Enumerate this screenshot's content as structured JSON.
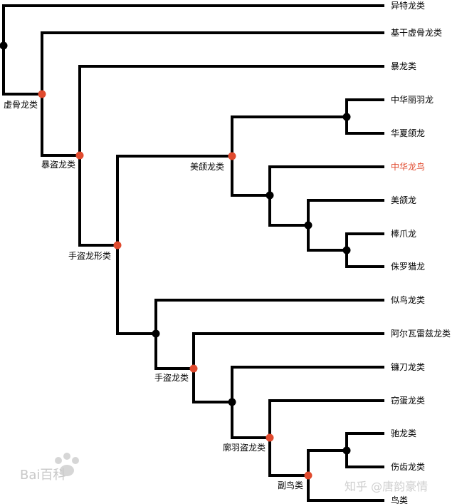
{
  "taxa": [
    {
      "label": "异特龙类",
      "highlight": false
    },
    {
      "label": "基干虚骨龙类",
      "highlight": false
    },
    {
      "label": "暴龙类",
      "highlight": false
    },
    {
      "label": "中华丽羽龙",
      "highlight": false
    },
    {
      "label": "华夏颌龙",
      "highlight": false
    },
    {
      "label": "中华龙鸟",
      "highlight": true
    },
    {
      "label": "美颌龙",
      "highlight": false
    },
    {
      "label": "棒爪龙",
      "highlight": false
    },
    {
      "label": "侏罗猎龙",
      "highlight": false
    },
    {
      "label": "似鸟龙类",
      "highlight": false
    },
    {
      "label": "阿尔瓦雷兹龙类",
      "highlight": false
    },
    {
      "label": "镰刀龙类",
      "highlight": false
    },
    {
      "label": "窃蛋龙类",
      "highlight": false
    },
    {
      "label": "驰龙类",
      "highlight": false
    },
    {
      "label": "伤齿龙类",
      "highlight": false
    },
    {
      "label": "鸟类",
      "highlight": false
    }
  ],
  "clades": {
    "coelurosauria": "虚骨龙类",
    "tyrannoraptora": "暴盗龙类",
    "maniraptoriformes": "手盗龙形类",
    "compsognathidae": "美颌龙类",
    "maniraptora": "手盗龙类",
    "pennaraptora": "廓羽盗龙类",
    "paraves": "副鸟类"
  },
  "watermarks": {
    "baidu": "Bai百科",
    "zhihu": "知乎 @唐韵豪情"
  },
  "colors": {
    "line": "#000000",
    "named_node": "#e04a2e",
    "unnamed_node": "#000000",
    "highlight_text": "#e04a2e"
  }
}
